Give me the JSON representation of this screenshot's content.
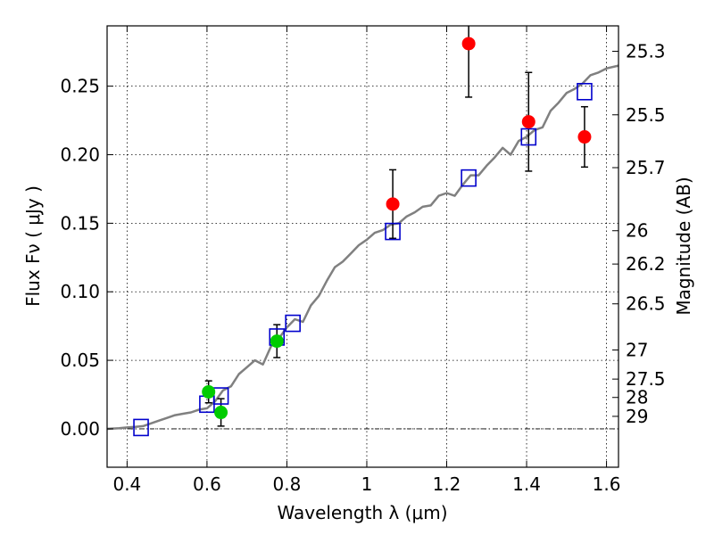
{
  "chart_data": {
    "type": "scatter",
    "xlabel": "Wavelength  λ (μm)",
    "ylabel_left": "Flux  Fν  ( μJy )",
    "ylabel_right": "Magnitude (AB)",
    "xlim": [
      0.35,
      1.63
    ],
    "ylim": [
      -0.028,
      0.294
    ],
    "grid": true,
    "x_ticks": [
      {
        "value": 0.4,
        "label": "0.4"
      },
      {
        "value": 0.6,
        "label": "0.6"
      },
      {
        "value": 0.8,
        "label": "0.8"
      },
      {
        "value": 1.0,
        "label": "1"
      },
      {
        "value": 1.2,
        "label": "1.2"
      },
      {
        "value": 1.4,
        "label": "1.4"
      },
      {
        "value": 1.6,
        "label": "1.6"
      }
    ],
    "y_ticks": [
      {
        "value": 0.0,
        "label": "0.00"
      },
      {
        "value": 0.05,
        "label": "0.05"
      },
      {
        "value": 0.1,
        "label": "0.10"
      },
      {
        "value": 0.15,
        "label": "0.15"
      },
      {
        "value": 0.2,
        "label": "0.20"
      },
      {
        "value": 0.25,
        "label": "0.25"
      }
    ],
    "right_ticks": [
      {
        "mag": 25.3,
        "label": "25.3"
      },
      {
        "mag": 25.5,
        "label": "25.5"
      },
      {
        "mag": 25.7,
        "label": "25.7"
      },
      {
        "mag": 26.0,
        "label": "26"
      },
      {
        "mag": 26.2,
        "label": "26.2"
      },
      {
        "mag": 26.5,
        "label": "26.5"
      },
      {
        "mag": 27.0,
        "label": "27"
      },
      {
        "mag": 27.5,
        "label": "27.5"
      },
      {
        "mag": 28.0,
        "label": "28"
      },
      {
        "mag": 29.0,
        "label": "29"
      }
    ],
    "zero_line": 0.0,
    "series": [
      {
        "kind": "model_spectrum",
        "color": "#808080",
        "x": [
          0.35,
          0.38,
          0.4,
          0.42,
          0.44,
          0.46,
          0.48,
          0.5,
          0.52,
          0.54,
          0.56,
          0.58,
          0.6,
          0.62,
          0.64,
          0.66,
          0.68,
          0.7,
          0.72,
          0.74,
          0.76,
          0.78,
          0.8,
          0.82,
          0.84,
          0.86,
          0.88,
          0.9,
          0.92,
          0.94,
          0.96,
          0.98,
          1.0,
          1.02,
          1.04,
          1.06,
          1.08,
          1.1,
          1.12,
          1.14,
          1.16,
          1.18,
          1.2,
          1.22,
          1.24,
          1.26,
          1.28,
          1.3,
          1.32,
          1.34,
          1.36,
          1.38,
          1.4,
          1.42,
          1.44,
          1.46,
          1.48,
          1.5,
          1.52,
          1.54,
          1.56,
          1.58,
          1.6,
          1.63
        ],
        "y": [
          0.0,
          0.0005,
          0.001,
          0.0015,
          0.002,
          0.004,
          0.006,
          0.008,
          0.01,
          0.011,
          0.012,
          0.014,
          0.015,
          0.02,
          0.028,
          0.031,
          0.04,
          0.045,
          0.05,
          0.047,
          0.06,
          0.066,
          0.074,
          0.08,
          0.078,
          0.09,
          0.097,
          0.108,
          0.118,
          0.122,
          0.128,
          0.134,
          0.138,
          0.143,
          0.145,
          0.149,
          0.15,
          0.155,
          0.158,
          0.162,
          0.163,
          0.17,
          0.172,
          0.17,
          0.178,
          0.185,
          0.185,
          0.192,
          0.198,
          0.205,
          0.2,
          0.21,
          0.213,
          0.218,
          0.22,
          0.232,
          0.238,
          0.245,
          0.248,
          0.252,
          0.258,
          0.26,
          0.263,
          0.265
        ]
      },
      {
        "kind": "model_bandpass",
        "marker": "open-square",
        "color": "#0000cc",
        "x": [
          0.435,
          0.6,
          0.635,
          0.775,
          0.815,
          1.065,
          1.255,
          1.405,
          1.545
        ],
        "y": [
          0.001,
          0.018,
          0.024,
          0.067,
          0.077,
          0.144,
          0.183,
          0.213,
          0.246
        ]
      },
      {
        "kind": "observed_optical",
        "marker": "filled-circle",
        "color": "#00cc00",
        "x": [
          0.604,
          0.635,
          0.775
        ],
        "y": [
          0.027,
          0.012,
          0.064
        ],
        "yerr": [
          0.008,
          0.01,
          0.012
        ]
      },
      {
        "kind": "observed_nir",
        "marker": "filled-circle",
        "color": "#ff0000",
        "x": [
          1.065,
          1.255,
          1.405,
          1.545
        ],
        "y": [
          0.164,
          0.281,
          0.224,
          0.213
        ],
        "yerr": [
          0.025,
          0.039,
          0.036,
          0.022
        ]
      }
    ]
  }
}
